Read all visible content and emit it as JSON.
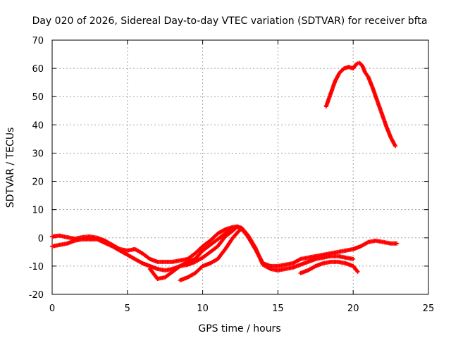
{
  "chart_data": {
    "type": "scatter",
    "title": "Day 020 of 2026, Sidereal Day-to-day VTEC variation (SDTVAR) for receiver bfta",
    "xlabel": "GPS time / hours",
    "ylabel": "SDTVAR / TECUs",
    "xlim": [
      0,
      25
    ],
    "ylim": [
      -20,
      70
    ],
    "xticks": [
      "0",
      "5",
      "10",
      "15",
      "20",
      "25"
    ],
    "yticks": [
      "-20",
      "-10",
      "0",
      "10",
      "20",
      "30",
      "40",
      "50",
      "60",
      "70"
    ],
    "grid": true,
    "marker": "+",
    "color": "#ff0000",
    "series": [
      {
        "name": "arc-1",
        "x": [
          0.0,
          0.5,
          1.0,
          1.5,
          2.0,
          2.5,
          3.0,
          3.5,
          4.0,
          4.5,
          5.0,
          5.5,
          6.0,
          6.5,
          7.0,
          7.5,
          8.0,
          8.5,
          9.0,
          9.5,
          10.0,
          10.5,
          11.0,
          11.5,
          12.0,
          12.3,
          12.6,
          13.0,
          13.5,
          14.0,
          14.5,
          15.0,
          15.5,
          16.0,
          16.5,
          17.0,
          17.5,
          18.0,
          18.5,
          19.0,
          19.5,
          20.0,
          20.5,
          21.0,
          21.5,
          22.0,
          22.5,
          22.9
        ],
        "y": [
          0.5,
          0.8,
          0.2,
          -0.3,
          0.2,
          0.5,
          0.0,
          -1.0,
          -2.5,
          -4.0,
          -4.5,
          -4.0,
          -5.5,
          -7.5,
          -8.5,
          -8.5,
          -8.5,
          -8.0,
          -7.5,
          -5.5,
          -3.0,
          -1.0,
          1.5,
          3.0,
          3.8,
          4.0,
          3.0,
          0.5,
          -4.0,
          -9.0,
          -10.0,
          -10.0,
          -9.5,
          -9.0,
          -7.5,
          -7.0,
          -6.5,
          -6.0,
          -5.5,
          -5.0,
          -4.5,
          -4.0,
          -3.0,
          -1.5,
          -1.0,
          -1.5,
          -2.0,
          -2.0
        ]
      },
      {
        "name": "arc-2",
        "x": [
          0.0,
          0.5,
          1.0,
          1.5,
          2.0,
          3.0,
          4.0,
          5.0,
          5.5,
          6.0,
          6.5,
          7.0,
          7.5,
          8.0,
          8.5,
          9.0,
          9.5,
          10.0,
          10.5,
          11.0,
          11.5,
          12.0,
          12.3,
          12.6,
          13.0,
          13.5,
          14.0,
          14.5,
          15.0,
          15.5,
          16.0,
          16.5,
          17.0,
          17.5,
          18.0,
          18.5,
          19.0,
          19.5,
          20.0
        ],
        "y": [
          -3.0,
          -2.5,
          -2.0,
          -1.0,
          -0.5,
          -0.5,
          -3.0,
          -6.0,
          -7.5,
          -9.0,
          -10.0,
          -11.0,
          -11.5,
          -11.0,
          -10.0,
          -9.5,
          -8.5,
          -7.0,
          -5.0,
          -3.0,
          0.5,
          2.5,
          4.0,
          3.5,
          1.0,
          -3.5,
          -9.5,
          -11.0,
          -11.5,
          -11.0,
          -10.5,
          -9.5,
          -8.5,
          -7.5,
          -7.0,
          -6.5,
          -6.5,
          -7.0,
          -7.5
        ]
      },
      {
        "name": "arc-3",
        "x": [
          6.5,
          7.0,
          7.5,
          8.0,
          8.5,
          9.0,
          9.5,
          10.0,
          10.5,
          11.0,
          11.5,
          12.0
        ],
        "y": [
          -11.0,
          -14.5,
          -14.0,
          -12.0,
          -10.0,
          -8.5,
          -7.5,
          -4.5,
          -2.5,
          -0.5,
          1.5,
          3.5
        ]
      },
      {
        "name": "arc-4",
        "x": [
          8.5,
          9.0,
          9.5,
          10.0,
          10.5,
          11.0,
          11.5,
          12.0,
          12.5
        ],
        "y": [
          -15.0,
          -14.0,
          -12.5,
          -10.0,
          -9.0,
          -7.5,
          -4.0,
          0.0,
          3.0
        ]
      },
      {
        "name": "arc-5",
        "x": [
          16.5,
          17.0,
          17.5,
          18.0,
          18.5,
          19.0,
          19.5,
          20.0,
          20.3
        ],
        "y": [
          -12.5,
          -11.5,
          -10.0,
          -9.0,
          -8.5,
          -8.5,
          -9.0,
          -10.0,
          -12.0
        ]
      },
      {
        "name": "arc-6",
        "x": [
          18.2,
          18.5,
          18.8,
          19.1,
          19.4,
          19.7,
          20.0,
          20.2,
          20.4,
          20.6,
          20.8,
          21.0,
          21.3,
          21.6,
          21.9,
          22.2,
          22.5,
          22.8
        ],
        "y": [
          46.5,
          51.0,
          55.5,
          58.5,
          60.0,
          60.5,
          60.0,
          61.5,
          62.0,
          61.0,
          58.5,
          57.0,
          53.0,
          48.5,
          44.0,
          39.5,
          35.5,
          32.5
        ]
      }
    ]
  }
}
